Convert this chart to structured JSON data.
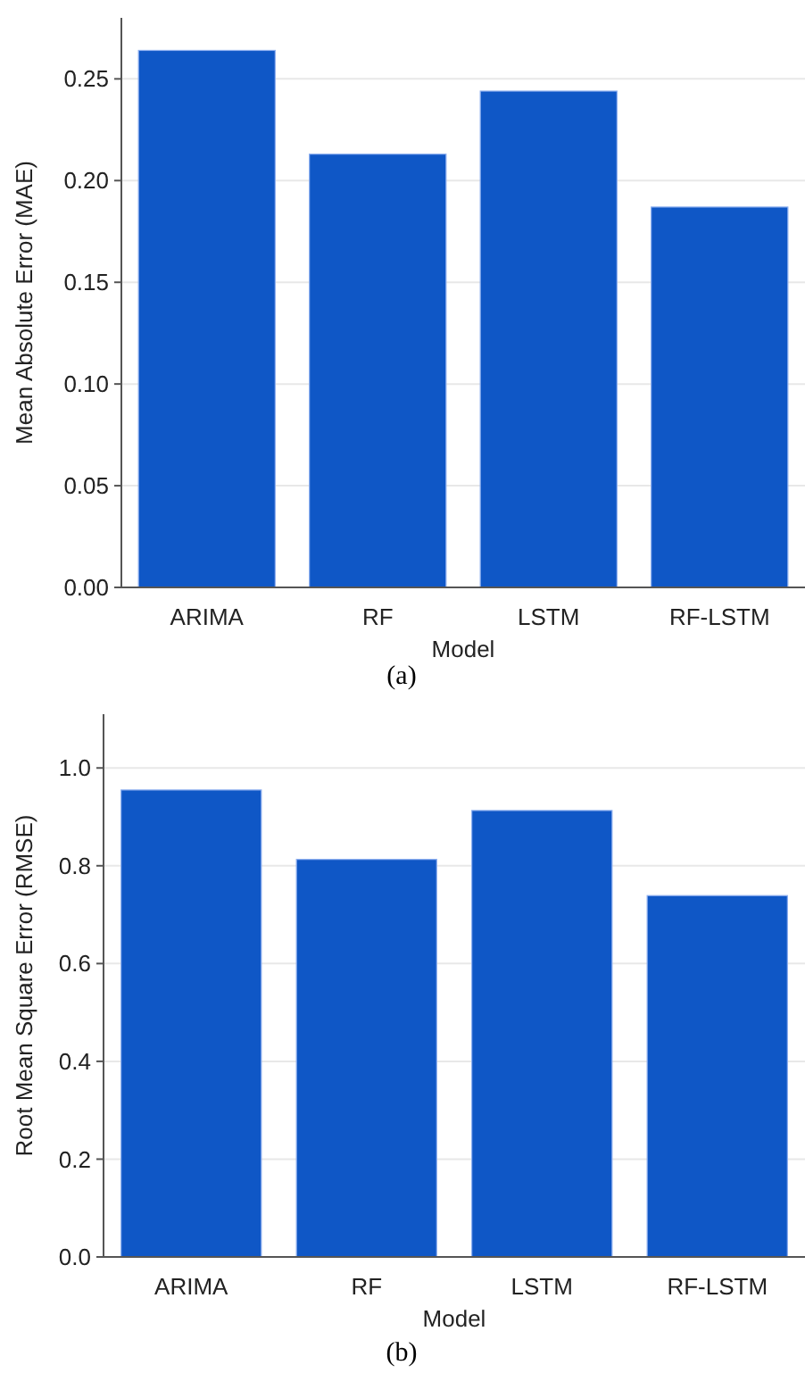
{
  "chart_data": [
    {
      "type": "bar",
      "xlabel": "Model",
      "ylabel": "Mean Absolute Error (MAE)",
      "categories": [
        "ARIMA",
        "RF",
        "LSTM",
        "RF-LSTM"
      ],
      "values": [
        0.264,
        0.213,
        0.244,
        0.187
      ],
      "color": "#0f57c6",
      "ylim": [
        0,
        0.28
      ],
      "yticks": [
        {
          "value": 0,
          "label": "0.00"
        },
        {
          "value": 0.05,
          "label": "0.05"
        },
        {
          "value": 0.1,
          "label": "0.10"
        },
        {
          "value": 0.15,
          "label": "0.15"
        },
        {
          "value": 0.2,
          "label": "0.20"
        },
        {
          "value": 0.25,
          "label": "0.25"
        }
      ],
      "grid": "y",
      "annotations": [
        "(a)"
      ]
    },
    {
      "type": "bar",
      "xlabel": "Model",
      "ylabel": "Root Mean Square Error (RMSE)",
      "categories": [
        "ARIMA",
        "RF",
        "LSTM",
        "RF-LSTM"
      ],
      "values": [
        0.955,
        0.813,
        0.913,
        0.739
      ],
      "color": "#0f57c6",
      "ylim": [
        0,
        1.11
      ],
      "yticks": [
        {
          "value": 0,
          "label": "0.0"
        },
        {
          "value": 0.2,
          "label": "0.2"
        },
        {
          "value": 0.4,
          "label": "0.4"
        },
        {
          "value": 0.6,
          "label": "0.6"
        },
        {
          "value": 0.8,
          "label": "0.8"
        },
        {
          "value": 1,
          "label": "1.0"
        }
      ],
      "grid": "y",
      "annotations": [
        "(b)"
      ]
    }
  ]
}
